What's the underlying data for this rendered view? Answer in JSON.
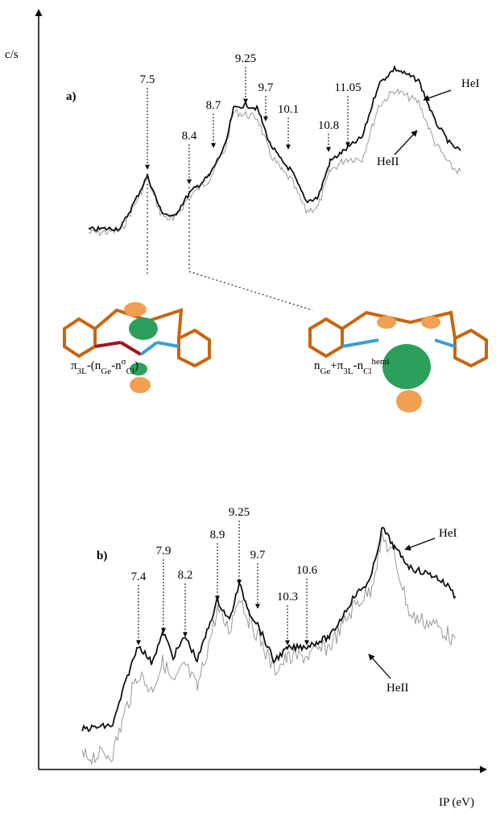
{
  "axes": {
    "y_label": "c/s",
    "x_label": "IP (eV)"
  },
  "panels": [
    {
      "label": "a)",
      "peaks": [
        "7.5",
        "8.4",
        "8.7",
        "9.25",
        "9.7",
        "10.1",
        "10.8",
        "11.05"
      ],
      "legend": [
        "HeI",
        "HeII"
      ]
    },
    {
      "label": "b)",
      "peaks": [
        "7.4",
        "7.9",
        "8.2",
        "8.9",
        "9.25",
        "9.7",
        "10.3",
        "10.6"
      ],
      "legend": [
        "HeI",
        "HeII"
      ]
    }
  ],
  "orbital_labels": [
    [
      "π",
      "3L",
      "-(n",
      "Ge",
      "-n",
      "σ",
      "Cl",
      ")"
    ],
    [
      "n",
      "Ge",
      "+π",
      "3L",
      "-n",
      "Cl",
      "hemi"
    ]
  ]
}
